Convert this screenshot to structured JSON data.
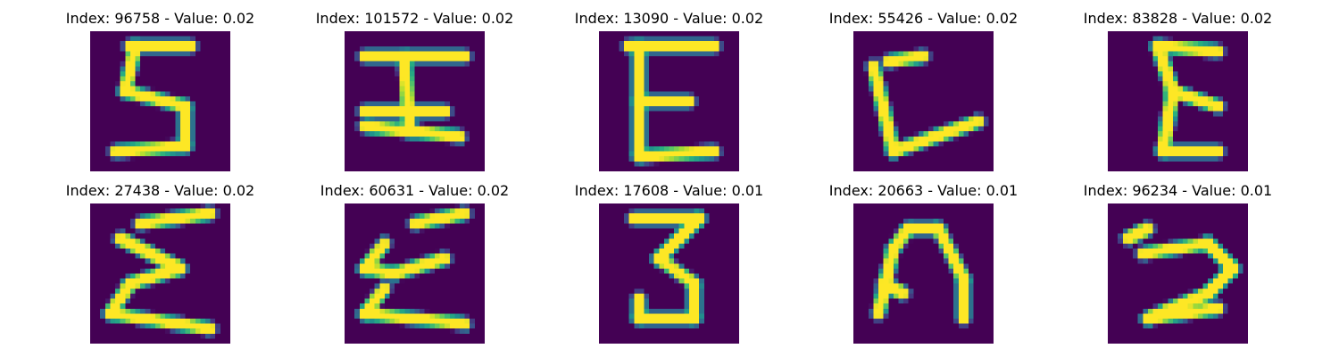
{
  "chart_data": [
    {
      "type": "heatmap",
      "title": "Index: 96758 - Value: 0.02",
      "index": 96758,
      "value": 0.02,
      "glyph": [
        "M8 3 L20 3",
        "M9 3 L7 12",
        "M7 12 L19 15",
        "M19 15 L19 23",
        "M19 23 L5 24"
      ]
    },
    {
      "type": "heatmap",
      "title": "Index: 101572 - Value: 0.02",
      "index": 101572,
      "value": 0.02,
      "glyph": [
        "M4 5 L24 5",
        "M12 5 L13 20",
        "M4 19 L23 21",
        "M4 16 L20 16"
      ]
    },
    {
      "type": "heatmap",
      "title": "Index: 13090 - Value: 0.02",
      "index": 13090,
      "value": 0.02,
      "glyph": [
        "M6 3 L23 3",
        "M8 3 L8 25",
        "M8 14 L18 14",
        "M8 25 L23 24"
      ]
    },
    {
      "type": "heatmap",
      "title": "Index: 55426 - Value: 0.02",
      "index": 55426,
      "value": 0.02,
      "glyph": [
        "M7 6 L14 5",
        "M4 7 L8 24",
        "M8 24 L25 18"
      ]
    },
    {
      "type": "heatmap",
      "title": "Index: 83828 - Value: 0.02",
      "index": 83828,
      "value": 0.02,
      "glyph": [
        "M10 3 L22 4",
        "M10 3 L13 12",
        "M13 12 L22 15",
        "M13 12 L11 24",
        "M11 24 L22 24"
      ]
    },
    {
      "type": "heatmap",
      "title": "Index: 27438 - Value: 0.02",
      "index": 27438,
      "value": 0.02,
      "glyph": [
        "M10 4 L24 2",
        "M6 7 L18 13",
        "M18 13 L8 16",
        "M8 16 L4 22",
        "M4 22 L24 25"
      ]
    },
    {
      "type": "heatmap",
      "title": "Index: 60631 - Value: 0.02",
      "index": 60631,
      "value": 0.02,
      "glyph": [
        "M14 4 L24 2",
        "M8 8 L4 13",
        "M4 13 L10 14",
        "M10 14 L20 11",
        "M8 17 L4 22",
        "M4 22 L24 24"
      ]
    },
    {
      "type": "heatmap",
      "title": "Index: 17608 - Value: 0.01",
      "index": 17608,
      "value": 0.01,
      "glyph": [
        "M7 3 L20 3",
        "M20 3 L12 11",
        "M12 11 L19 16",
        "M19 16 L19 23",
        "M19 23 L8 23",
        "M8 23 L8 19"
      ]
    },
    {
      "type": "heatmap",
      "title": "Index: 20663 - Value: 0.01",
      "index": 20663,
      "value": 0.01,
      "glyph": [
        "M8 9 L5 22",
        "M8 9 L11 5",
        "M11 5 L17 5",
        "M17 5 L22 15",
        "M22 15 L22 23",
        "M6 16 L10 18"
      ]
    },
    {
      "type": "heatmap",
      "title": "Index: 96234 - Value: 0.01",
      "index": 96234,
      "value": 0.01,
      "glyph": [
        "M4 7 L8 5",
        "M7 10 L20 8",
        "M20 8 L25 13",
        "M25 13 L20 18",
        "M20 18 L8 23",
        "M8 23 L22 21"
      ]
    }
  ]
}
